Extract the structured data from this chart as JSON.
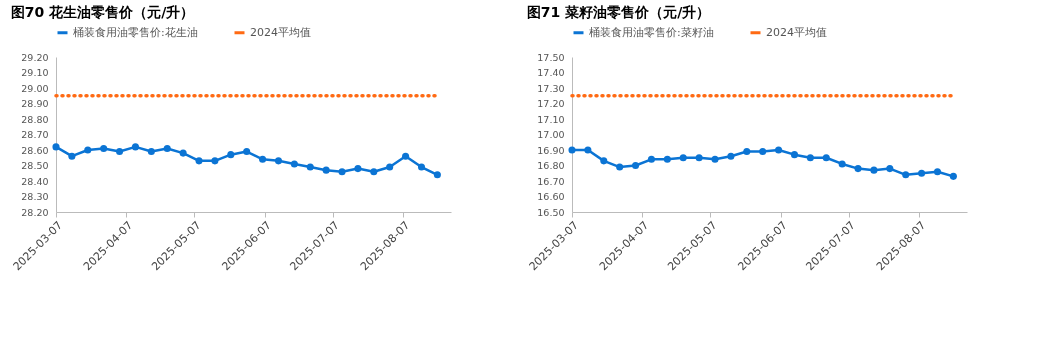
{
  "chart_data": [
    {
      "type": "line",
      "title": "图70 花生油零售价（元/升）",
      "x": [
        "2025-03-07",
        "2025-03-14",
        "2025-03-21",
        "2025-03-28",
        "2025-04-04",
        "2025-04-11",
        "2025-04-18",
        "2025-04-25",
        "2025-05-02",
        "2025-05-09",
        "2025-05-16",
        "2025-05-23",
        "2025-05-30",
        "2025-06-06",
        "2025-06-13",
        "2025-06-20",
        "2025-06-27",
        "2025-07-04",
        "2025-07-11",
        "2025-07-18",
        "2025-07-25",
        "2025-08-01",
        "2025-08-08",
        "2025-08-15",
        "2025-08-22"
      ],
      "series": [
        {
          "name": "桶装食用油零售价:花生油",
          "color": "#0b74d4",
          "marker": "circle",
          "line_style": "solid",
          "values": [
            28.62,
            28.56,
            28.6,
            28.61,
            28.59,
            28.62,
            28.59,
            28.61,
            28.58,
            28.53,
            28.53,
            28.57,
            28.59,
            28.54,
            28.53,
            28.51,
            28.49,
            28.47,
            28.46,
            28.48,
            28.46,
            28.49,
            28.56,
            28.49,
            28.44
          ]
        },
        {
          "name": "2024平均值",
          "color": "#ff6a13",
          "marker": "none",
          "line_style": "dotted",
          "values": [
            28.95,
            28.95,
            28.95,
            28.95,
            28.95,
            28.95,
            28.95,
            28.95,
            28.95,
            28.95,
            28.95,
            28.95,
            28.95,
            28.95,
            28.95,
            28.95,
            28.95,
            28.95,
            28.95,
            28.95,
            28.95,
            28.95,
            28.95,
            28.95,
            28.95
          ]
        }
      ],
      "xlim": [
        "2025-03-07",
        "2025-08-28"
      ],
      "xticks": [
        "2025-03-07",
        "2025-04-07",
        "2025-05-07",
        "2025-06-07",
        "2025-07-07",
        "2025-08-07"
      ],
      "ylim": [
        28.2,
        29.2
      ],
      "yticks": [
        {
          "value": 28.2,
          "label": "28.20"
        },
        {
          "value": 28.3,
          "label": "28.30"
        },
        {
          "value": 28.4,
          "label": "28.40"
        },
        {
          "value": 28.5,
          "label": "28.50"
        },
        {
          "value": 28.6,
          "label": "28.60"
        },
        {
          "value": 28.7,
          "label": "28.70"
        },
        {
          "value": 28.8,
          "label": "28.80"
        },
        {
          "value": 28.9,
          "label": "28.90"
        },
        {
          "value": 29.0,
          "label": "29.00"
        },
        {
          "value": 29.1,
          "label": "29.10"
        },
        {
          "value": 29.2,
          "label": "29.20"
        }
      ],
      "grid": false,
      "legend": "top"
    },
    {
      "type": "line",
      "title": "图71 菜籽油零售价（元/升）",
      "x": [
        "2025-03-07",
        "2025-03-14",
        "2025-03-21",
        "2025-03-28",
        "2025-04-04",
        "2025-04-11",
        "2025-04-18",
        "2025-04-25",
        "2025-05-02",
        "2025-05-09",
        "2025-05-16",
        "2025-05-23",
        "2025-05-30",
        "2025-06-06",
        "2025-06-13",
        "2025-06-20",
        "2025-06-27",
        "2025-07-04",
        "2025-07-11",
        "2025-07-18",
        "2025-07-25",
        "2025-08-01",
        "2025-08-08",
        "2025-08-15",
        "2025-08-22"
      ],
      "series": [
        {
          "name": "桶装食用油零售价:菜籽油",
          "color": "#0b74d4",
          "marker": "circle",
          "line_style": "solid",
          "values": [
            16.9,
            16.9,
            16.83,
            16.79,
            16.8,
            16.84,
            16.84,
            16.85,
            16.85,
            16.84,
            16.86,
            16.89,
            16.89,
            16.9,
            16.87,
            16.85,
            16.85,
            16.81,
            16.78,
            16.77,
            16.78,
            16.74,
            16.75,
            16.76,
            16.73
          ]
        },
        {
          "name": "2024平均值",
          "color": "#ff6a13",
          "marker": "none",
          "line_style": "dotted",
          "values": [
            17.25,
            17.25,
            17.25,
            17.25,
            17.25,
            17.25,
            17.25,
            17.25,
            17.25,
            17.25,
            17.25,
            17.25,
            17.25,
            17.25,
            17.25,
            17.25,
            17.25,
            17.25,
            17.25,
            17.25,
            17.25,
            17.25,
            17.25,
            17.25,
            17.25
          ]
        }
      ],
      "xlim": [
        "2025-03-07",
        "2025-08-28"
      ],
      "xticks": [
        "2025-03-07",
        "2025-04-07",
        "2025-05-07",
        "2025-06-07",
        "2025-07-07",
        "2025-08-07"
      ],
      "ylim": [
        16.5,
        17.5
      ],
      "yticks": [
        {
          "value": 16.5,
          "label": "16.50"
        },
        {
          "value": 16.6,
          "label": "16.60"
        },
        {
          "value": 16.7,
          "label": "16.70"
        },
        {
          "value": 16.8,
          "label": "16.80"
        },
        {
          "value": 16.9,
          "label": "16.90"
        },
        {
          "value": 17.0,
          "label": "17.00"
        },
        {
          "value": 17.1,
          "label": "17.10"
        },
        {
          "value": 17.2,
          "label": "17.20"
        },
        {
          "value": 17.3,
          "label": "17.30"
        },
        {
          "value": 17.4,
          "label": "17.40"
        },
        {
          "value": 17.5,
          "label": "17.50"
        }
      ],
      "grid": false,
      "legend": "top"
    }
  ]
}
